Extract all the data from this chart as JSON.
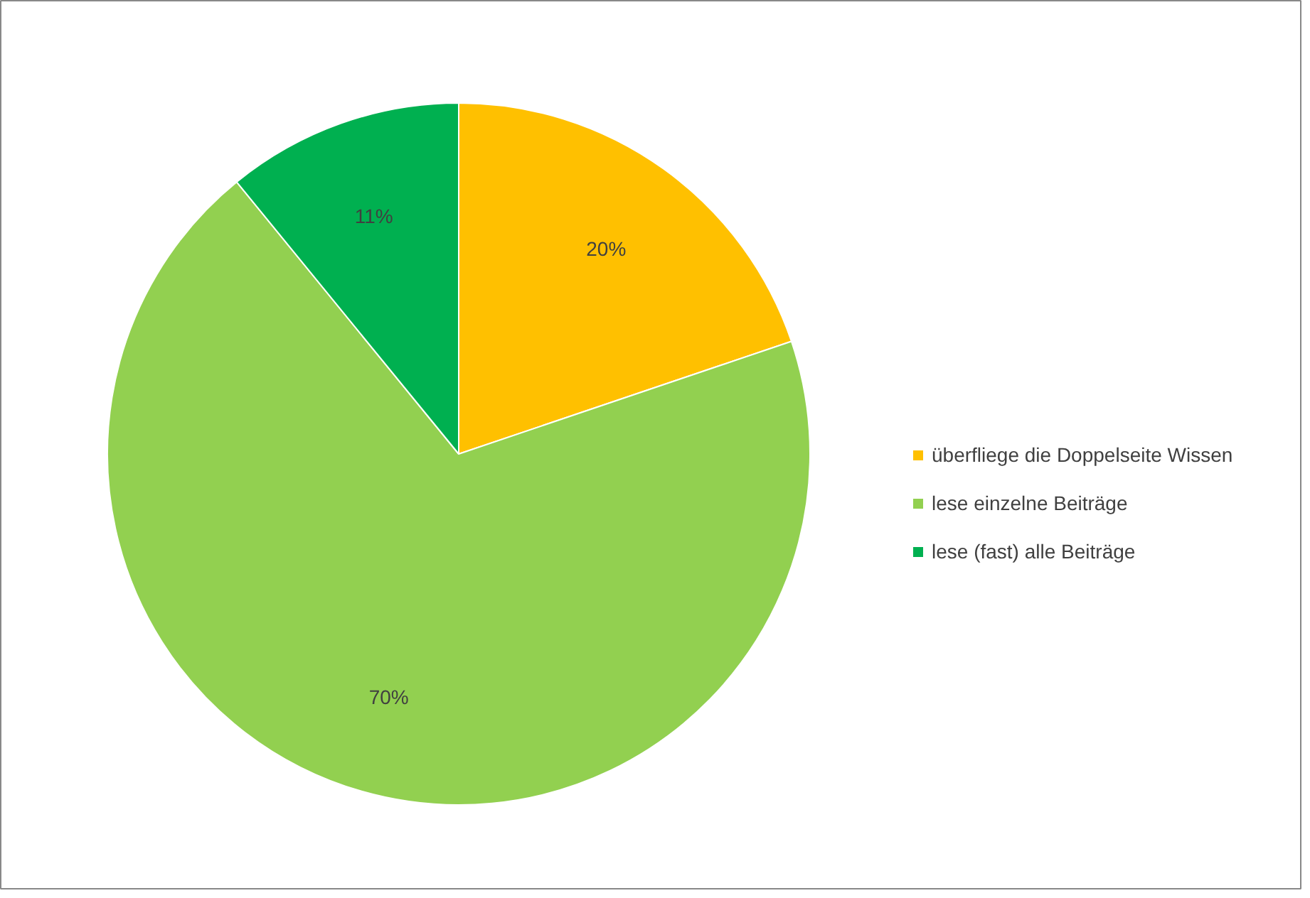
{
  "chart_data": {
    "type": "pie",
    "categories": [
      "überfliege die Doppelseite Wissen",
      "lese einzelne Beiträge",
      "lese (fast) alle Beiträge"
    ],
    "values": [
      20,
      70,
      11
    ],
    "colors": [
      "#ffc000",
      "#92d050",
      "#00b050"
    ],
    "value_labels": [
      "20%",
      "70%",
      "11%"
    ],
    "legend": "right"
  }
}
